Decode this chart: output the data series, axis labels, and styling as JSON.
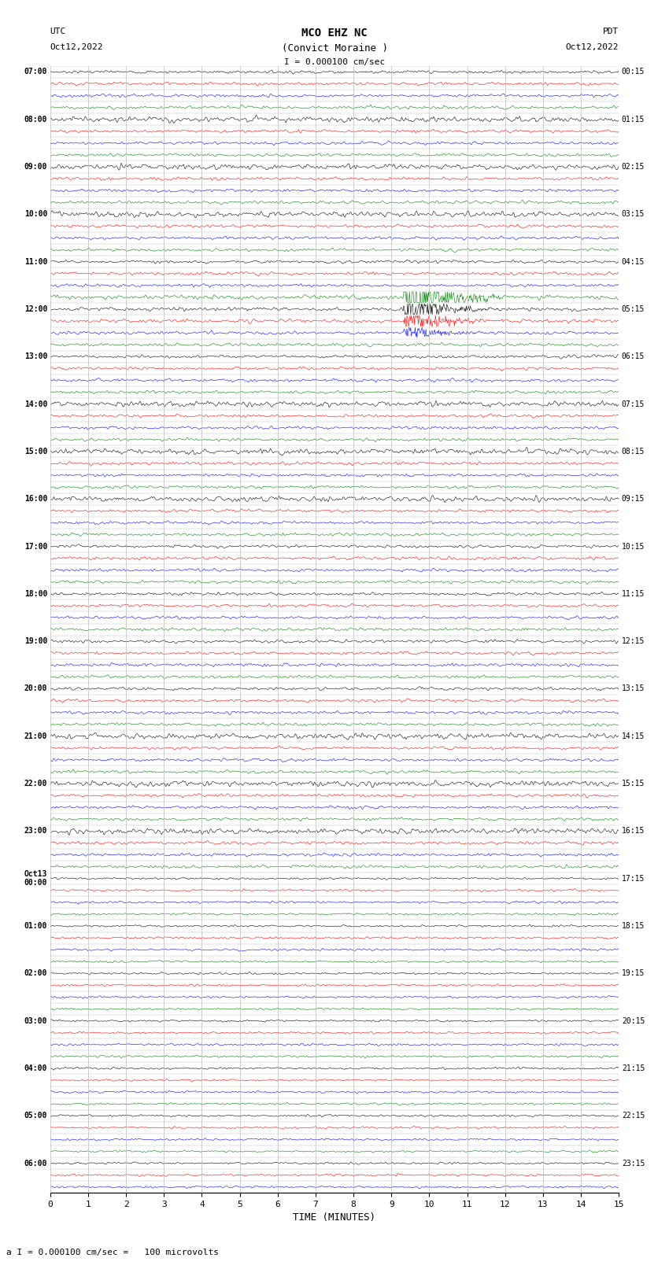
{
  "title_line1": "MCO EHZ NC",
  "title_line2": "(Convict Moraine )",
  "scale_label": "I = 0.000100 cm/sec",
  "bottom_label": "a I = 0.000100 cm/sec =   100 microvolts",
  "utc_label": "UTC\nOct12,2022",
  "pdt_label": "PDT\nOct12,2022",
  "xlabel": "TIME (MINUTES)",
  "left_times": [
    "07:00",
    "",
    "",
    "",
    "08:00",
    "",
    "",
    "",
    "09:00",
    "",
    "",
    "",
    "10:00",
    "",
    "",
    "",
    "11:00",
    "",
    "",
    "",
    "12:00",
    "",
    "",
    "",
    "13:00",
    "",
    "",
    "",
    "14:00",
    "",
    "",
    "",
    "15:00",
    "",
    "",
    "",
    "16:00",
    "",
    "",
    "",
    "17:00",
    "",
    "",
    "",
    "18:00",
    "",
    "",
    "",
    "19:00",
    "",
    "",
    "",
    "20:00",
    "",
    "",
    "",
    "21:00",
    "",
    "",
    "",
    "22:00",
    "",
    "",
    "",
    "23:00",
    "",
    "",
    "",
    "Oct13\n00:00",
    "",
    "",
    "",
    "01:00",
    "",
    "",
    "",
    "02:00",
    "",
    "",
    "",
    "03:00",
    "",
    "",
    "",
    "04:00",
    "",
    "",
    "",
    "05:00",
    "",
    "",
    "",
    "06:00",
    "",
    ""
  ],
  "right_times": [
    "00:15",
    "",
    "",
    "",
    "01:15",
    "",
    "",
    "",
    "02:15",
    "",
    "",
    "",
    "03:15",
    "",
    "",
    "",
    "04:15",
    "",
    "",
    "",
    "05:15",
    "",
    "",
    "",
    "06:15",
    "",
    "",
    "",
    "07:15",
    "",
    "",
    "",
    "08:15",
    "",
    "",
    "",
    "09:15",
    "",
    "",
    "",
    "10:15",
    "",
    "",
    "",
    "11:15",
    "",
    "",
    "",
    "12:15",
    "",
    "",
    "",
    "13:15",
    "",
    "",
    "",
    "14:15",
    "",
    "",
    "",
    "15:15",
    "",
    "",
    "",
    "16:15",
    "",
    "",
    "",
    "17:15",
    "",
    "",
    "",
    "18:15",
    "",
    "",
    "",
    "19:15",
    "",
    "",
    "",
    "20:15",
    "",
    "",
    "",
    "21:15",
    "",
    "",
    "",
    "22:15",
    "",
    "",
    "",
    "23:15",
    "",
    ""
  ],
  "colors": [
    "black",
    "red",
    "blue",
    "green"
  ],
  "n_rows": 95,
  "minutes": 15,
  "background_color": "white",
  "grid_color": "#bbbbbb"
}
